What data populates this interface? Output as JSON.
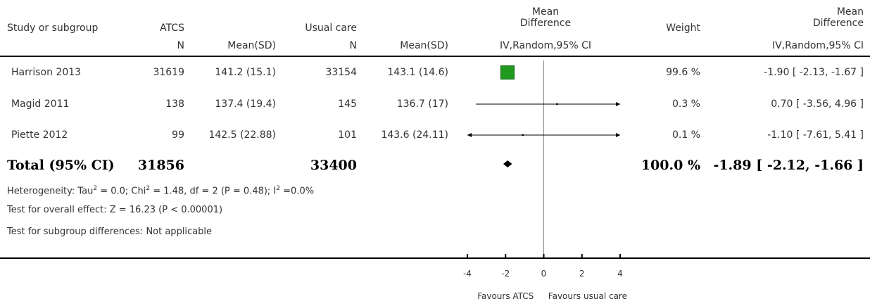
{
  "header": {
    "study_label": "Study or subgroup",
    "group1_name": "ATCS",
    "group2_name": "Usual care",
    "md_col_title_line1": "Mean",
    "md_col_title_line2": "Difference",
    "weight_label": "Weight",
    "md_right_title_line1": "Mean",
    "md_right_title_line2": "Difference",
    "n_label_1": "N",
    "meansd_label_1": "Mean(SD)",
    "n_label_2": "N",
    "meansd_label_2": "Mean(SD)",
    "method_label_plot": "IV,Random,95% CI",
    "method_label_right": "IV,Random,95% CI"
  },
  "studies": [
    {
      "name": "Harrison 2013",
      "n1": "31619",
      "meansd1": "141.2 (15.1)",
      "n2": "33154",
      "meansd2": "143.1 (14.6)",
      "weight": "99.6 %",
      "ci_text": "-1.90 [ -2.13, -1.67 ]"
    },
    {
      "name": "Magid 2011",
      "n1": "138",
      "meansd1": "137.4 (19.4)",
      "n2": "145",
      "meansd2": "136.7 (17)",
      "weight": "0.3 %",
      "ci_text": "0.70 [ -3.56, 4.96 ]"
    },
    {
      "name": "Piette 2012",
      "n1": "99",
      "meansd1": "142.5 (22.88)",
      "n2": "101",
      "meansd2": "143.6 (24.11)",
      "weight": "0.1 %",
      "ci_text": "-1.10 [ -7.61, 5.41 ]"
    }
  ],
  "total": {
    "label": "Total (95% CI)",
    "n1": "31856",
    "n2": "33400",
    "weight": "100.0 %",
    "ci_text": "-1.89 [ -2.12, -1.66 ]"
  },
  "footnotes": {
    "heterogeneity_a": "Heterogeneity: Tau",
    "heterogeneity_b": " = 0.0; Chi",
    "heterogeneity_c": " = 1.48, df = 2 (P = 0.48); I",
    "heterogeneity_d": " =0.0%",
    "sup2": "2",
    "overall_effect": "Test for overall effect: Z = 16.23 (P < 0.00001)",
    "subgroup": "Test for subgroup differences: Not applicable"
  },
  "colors": {
    "square": "#1f9a1f",
    "square_border": "#0b5e0b",
    "line": "#000000",
    "zero_line": "#888888"
  },
  "chart_data": {
    "type": "forest",
    "xlim": [
      -4,
      4
    ],
    "ticks": [
      -4,
      -2,
      0,
      2,
      4
    ],
    "tick_labels": [
      "-4",
      "-2",
      "0",
      "2",
      "4"
    ],
    "favours_left": "Favours ATCS",
    "favours_right": "Favours usual care",
    "studies": [
      {
        "name": "Harrison 2013",
        "md": -1.9,
        "lo": -2.13,
        "hi": -1.67,
        "weight": 99.6
      },
      {
        "name": "Magid 2011",
        "md": 0.7,
        "lo": -3.56,
        "hi": 4.96,
        "weight": 0.3
      },
      {
        "name": "Piette 2012",
        "md": -1.1,
        "lo": -7.61,
        "hi": 5.41,
        "weight": 0.1
      }
    ],
    "pooled": {
      "md": -1.89,
      "lo": -2.12,
      "hi": -1.66
    }
  }
}
